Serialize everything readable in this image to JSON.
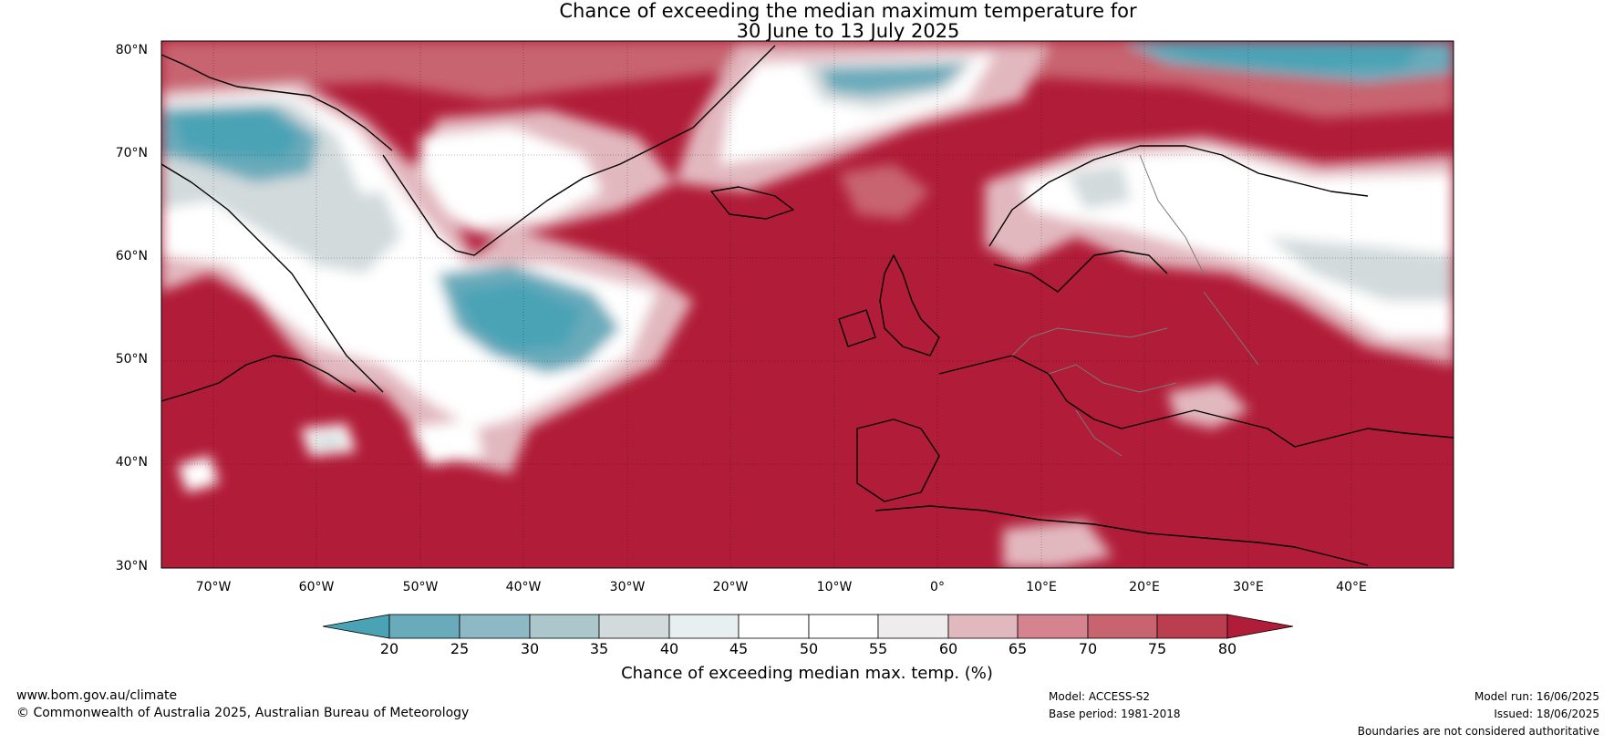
{
  "title_line1": "Chance of exceeding the median maximum temperature for",
  "title_line2": "30 June to 13 July 2025",
  "lat_labels": [
    "80°N",
    "70°N",
    "60°N",
    "50°N",
    "40°N",
    "30°N"
  ],
  "lon_labels": [
    "70°W",
    "60°W",
    "50°W",
    "40°W",
    "30°W",
    "20°W",
    "10°W",
    "0°",
    "10°E",
    "20°E",
    "30°E",
    "40°E"
  ],
  "colorbar": {
    "ticks": [
      "20",
      "25",
      "30",
      "35",
      "40",
      "45",
      "50",
      "55",
      "60",
      "65",
      "70",
      "75",
      "80"
    ],
    "label": "Chance of exceeding median max. temp. (%)",
    "colors": [
      "#4aa3b5",
      "#6aabbb",
      "#8db9c5",
      "#acc7cc",
      "#d2dadc",
      "#e8eff1",
      "#ffffff",
      "#ffffff",
      "#efeced",
      "#e2b8bf",
      "#d4838f",
      "#c86470",
      "#bb3d50",
      "#b11c38"
    ]
  },
  "map_colors": {
    "high": "#b11c38",
    "mid_high": "#c86470",
    "light_red": "#e2b8bf",
    "neutral": "#ffffff",
    "light_blue": "#d2dadc",
    "blue": "#6aabbb",
    "deep_blue": "#4aa3b5"
  },
  "footer": {
    "website": "www.bom.gov.au/climate",
    "copyright": "© Commonwealth of Australia 2025, Australian Bureau of Meteorology",
    "model": "Model: ACCESS-S2",
    "base_period": "Base period: 1981-2018",
    "model_run": "Model run: 16/06/2025",
    "issued": "Issued: 18/06/2025",
    "disclaimer": "Boundaries are not considered authoritative"
  }
}
